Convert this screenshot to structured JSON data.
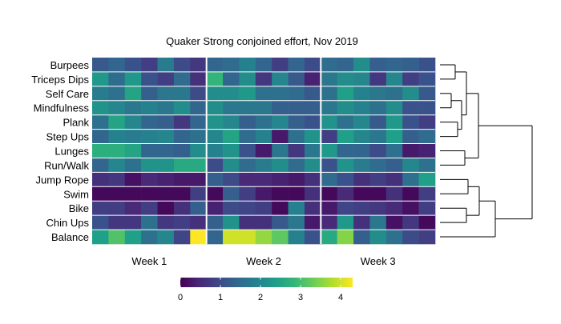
{
  "chart_data": {
    "type": "heatmap",
    "title": "Quaker Strong conjoined effort, Nov 2019",
    "rows": [
      "Burpees",
      "Triceps Dips",
      "Self Care",
      "Mindfulness",
      "Plank",
      "Step Ups",
      "Lunges",
      "Run/Walk",
      "Jump Rope",
      "Swim",
      "Bike",
      "Chin Ups",
      "Balance"
    ],
    "week_labels": [
      "Week 1",
      "Week 2",
      "Week 3"
    ],
    "days_per_week": 7,
    "values": [
      [
        1.2,
        1.4,
        1.1,
        0.8,
        1.8,
        1.0,
        0.7,
        1.4,
        1.5,
        1.9,
        1.4,
        0.8,
        1.4,
        1.0,
        1.5,
        1.4,
        2.1,
        1.3,
        1.4,
        1.3,
        1.1
      ],
      [
        2.3,
        1.5,
        2.3,
        1.1,
        0.8,
        1.5,
        0.6,
        2.8,
        1.4,
        2.1,
        0.7,
        2.0,
        1.2,
        0.4,
        1.7,
        2.1,
        2.0,
        0.7,
        2.0,
        0.8,
        1.1
      ],
      [
        1.8,
        1.6,
        2.5,
        1.3,
        1.7,
        1.7,
        1.0,
        2.1,
        2.1,
        2.3,
        1.6,
        1.6,
        1.5,
        1.2,
        1.6,
        2.4,
        1.9,
        1.7,
        1.6,
        2.1,
        1.2
      ],
      [
        2.2,
        2.0,
        1.7,
        1.9,
        1.7,
        2.1,
        1.4,
        2.1,
        1.7,
        1.7,
        1.7,
        1.3,
        1.3,
        1.3,
        1.7,
        2.1,
        1.9,
        1.6,
        2.1,
        1.1,
        1.1
      ],
      [
        1.6,
        2.5,
        2.0,
        1.4,
        1.3,
        0.7,
        1.4,
        2.2,
        2.0,
        1.3,
        1.6,
        2.0,
        1.3,
        1.1,
        2.2,
        1.6,
        2.0,
        1.2,
        2.3,
        1.1,
        0.8
      ],
      [
        1.4,
        1.9,
        1.8,
        1.9,
        2.0,
        1.4,
        1.6,
        2.0,
        2.5,
        1.5,
        1.9,
        0.3,
        1.6,
        2.2,
        0.8,
        2.4,
        2.0,
        1.7,
        2.4,
        1.3,
        1.5
      ],
      [
        2.7,
        2.7,
        2.5,
        1.4,
        1.4,
        1.3,
        2.1,
        1.9,
        2.2,
        1.1,
        0.3,
        1.7,
        0.7,
        1.7,
        2.3,
        1.4,
        1.4,
        1.0,
        1.6,
        0.3,
        0.4
      ],
      [
        1.4,
        2.0,
        1.6,
        2.2,
        2.2,
        2.6,
        2.6,
        1.0,
        2.1,
        1.5,
        1.8,
        2.1,
        1.5,
        2.1,
        1.1,
        2.2,
        1.8,
        1.5,
        1.3,
        2.0,
        1.6
      ],
      [
        0.6,
        0.7,
        0.2,
        0.5,
        0.4,
        0.3,
        0.3,
        1.3,
        1.0,
        0.5,
        0.5,
        0.4,
        0.3,
        0.6,
        1.5,
        1.1,
        0.6,
        0.8,
        0.6,
        1.6,
        2.4
      ],
      [
        0.1,
        0.1,
        0.1,
        0.1,
        0.1,
        0.1,
        0.8,
        0.1,
        1.3,
        0.8,
        0.3,
        0.1,
        0.1,
        0.6,
        0.1,
        0.5,
        0.1,
        0.1,
        0.6,
        0.1,
        0.8
      ],
      [
        0.8,
        0.8,
        0.5,
        0.8,
        0.1,
        0.6,
        1.3,
        0.4,
        1.0,
        0.9,
        0.8,
        0.1,
        1.9,
        0.6,
        0.3,
        0.9,
        0.8,
        0.7,
        0.5,
        0.2,
        0.8
      ],
      [
        1.1,
        0.7,
        0.7,
        1.6,
        0.7,
        0.8,
        0.6,
        1.3,
        2.2,
        0.6,
        0.6,
        1.2,
        1.7,
        0.3,
        0.5,
        2.3,
        0.6,
        1.7,
        0.2,
        0.7,
        0.1
      ],
      [
        2.4,
        3.1,
        2.4,
        1.6,
        2.0,
        0.9,
        4.3,
        1.4,
        4.0,
        4.0,
        3.6,
        3.2,
        1.9,
        1.1,
        2.6,
        3.5,
        1.3,
        2.1,
        1.6,
        1.0,
        0.8
      ]
    ],
    "colorbar": {
      "min": 0,
      "max": 4.3,
      "ticks": [
        0,
        1,
        2,
        3,
        4
      ],
      "palette": "viridis"
    },
    "grid": "white separators between days and weeks",
    "dendrogram": "right side, hierarchical clustering of rows"
  }
}
